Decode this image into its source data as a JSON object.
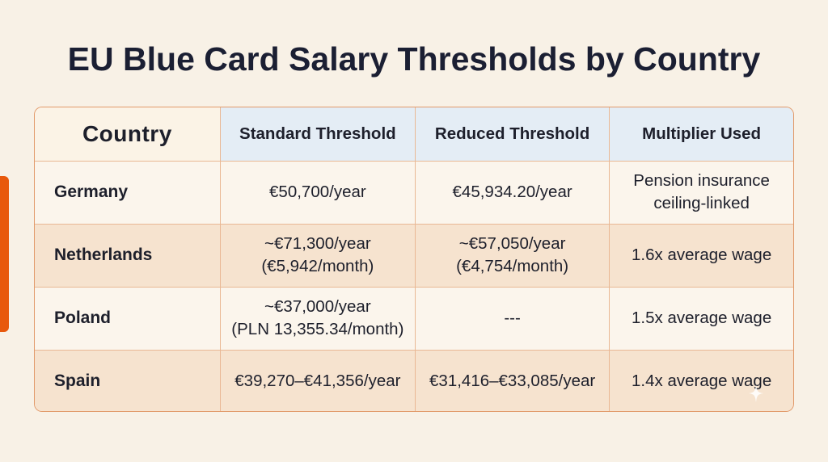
{
  "title": "EU Blue Card Salary Thresholds by Country",
  "table": {
    "headers": [
      "Country",
      "Standard Threshold",
      "Reduced Threshold",
      "Multiplier Used"
    ],
    "rows": [
      {
        "country": "Germany",
        "standard": "€50,700/year",
        "reduced": "€45,934.20/year",
        "multiplier": "Pension insurance\nceiling-linked"
      },
      {
        "country": "Netherlands",
        "standard": "~€71,300/year\n(€5,942/month)",
        "reduced": "~€57,050/year\n(€4,754/month)",
        "multiplier": "1.6x average wage"
      },
      {
        "country": "Poland",
        "standard": "~€37,000/year\n(PLN 13,355.34/month)",
        "reduced": "---",
        "multiplier": "1.5x average wage"
      },
      {
        "country": "Spain",
        "standard": "€39,270–€41,356/year",
        "reduced": "€31,416–€33,085/year",
        "multiplier": "1.4x average wage"
      }
    ]
  },
  "colors": {
    "background": "#f8f1e6",
    "accent": "#e8590c",
    "header_bg": "#e4edf5",
    "row_alt_bg": "#f6e3cf",
    "border": "#e9b894"
  },
  "icons": {
    "corner": "sparkle-icon"
  }
}
